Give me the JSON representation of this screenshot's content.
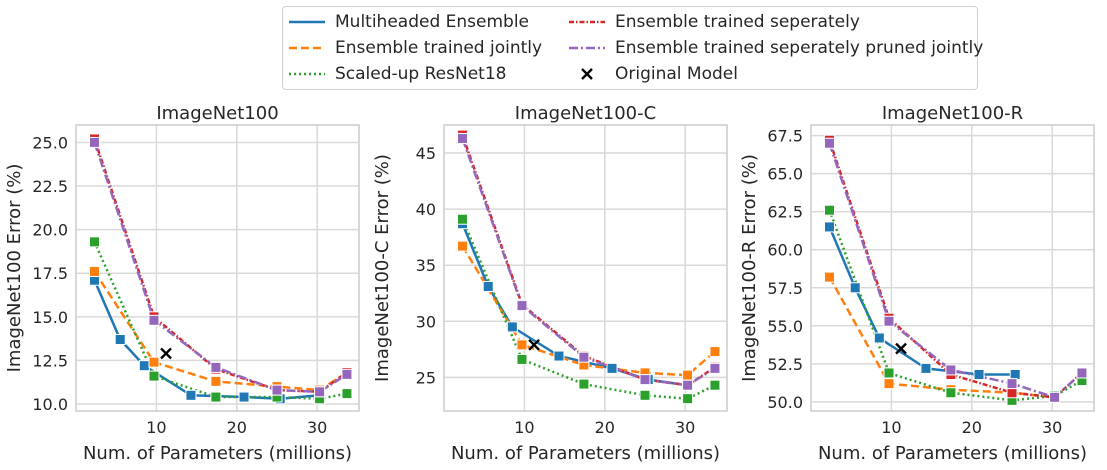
{
  "chart_data": [
    {
      "type": "line",
      "title": "ImageNet100",
      "xlabel": "Num. of Parameters (millions)",
      "ylabel": "ImageNet100 Error (%)",
      "xlim": [
        0,
        35.2
      ],
      "ylim": [
        9.6,
        26.0
      ],
      "xticks": [
        10,
        20,
        30
      ],
      "yticks": [
        10.0,
        12.5,
        15.0,
        17.5,
        20.0,
        22.5,
        25.0
      ],
      "ytick_labels": [
        "10.0",
        "12.5",
        "15.0",
        "17.5",
        "20.0",
        "22.5",
        "25.0"
      ],
      "grid": true,
      "series": [
        {
          "name": "Multiheaded Ensemble",
          "points": [
            [
              2.3,
              17.1
            ],
            [
              5.5,
              13.7
            ],
            [
              8.5,
              12.2
            ],
            [
              14.3,
              10.5
            ],
            [
              20.9,
              10.4
            ],
            [
              25.4,
              10.3
            ],
            [
              30.3,
              10.5
            ]
          ]
        },
        {
          "name": "Ensemble trained jointly",
          "points": [
            [
              2.3,
              17.6
            ],
            [
              9.7,
              12.4
            ],
            [
              17.4,
              11.3
            ],
            [
              25.0,
              11.0
            ],
            [
              30.3,
              10.8
            ],
            [
              33.7,
              11.8
            ]
          ]
        },
        {
          "name": "Scaled-up ResNet18",
          "points": [
            [
              2.3,
              19.3
            ],
            [
              9.7,
              11.6
            ],
            [
              17.4,
              10.4
            ],
            [
              25.0,
              10.4
            ],
            [
              30.3,
              10.3
            ],
            [
              33.7,
              10.6
            ]
          ]
        },
        {
          "name": "Ensemble trained seperately",
          "points": [
            [
              2.3,
              25.2
            ],
            [
              9.7,
              15.0
            ],
            [
              17.4,
              12.0
            ],
            [
              25.0,
              10.8
            ],
            [
              30.3,
              10.7
            ],
            [
              33.7,
              11.8
            ]
          ]
        },
        {
          "name": "Ensemble trained seperately pruned jointly",
          "points": [
            [
              2.3,
              25.0
            ],
            [
              9.7,
              14.8
            ],
            [
              17.4,
              12.1
            ],
            [
              25.0,
              10.8
            ],
            [
              30.3,
              10.7
            ],
            [
              33.7,
              11.7
            ]
          ]
        }
      ],
      "original_model": [
        11.2,
        12.9
      ]
    },
    {
      "type": "line",
      "title": "ImageNet100-C",
      "xlabel": "Num. of Parameters (millions)",
      "ylabel": "ImageNet100-C Error (%)",
      "xlim": [
        0,
        35.2
      ],
      "ylim": [
        22.0,
        47.5
      ],
      "xticks": [
        10,
        20,
        30
      ],
      "yticks": [
        25,
        30,
        35,
        40,
        45
      ],
      "ytick_labels": [
        "25",
        "30",
        "35",
        "40",
        "45"
      ],
      "grid": true,
      "series": [
        {
          "name": "Multiheaded Ensemble",
          "points": [
            [
              2.3,
              38.7
            ],
            [
              5.5,
              33.1
            ],
            [
              8.5,
              29.5
            ],
            [
              14.3,
              26.9
            ],
            [
              20.9,
              25.8
            ],
            [
              25.4,
              24.8
            ],
            [
              30.3,
              24.3
            ]
          ]
        },
        {
          "name": "Ensemble trained jointly",
          "points": [
            [
              2.3,
              36.7
            ],
            [
              9.7,
              27.9
            ],
            [
              17.4,
              26.1
            ],
            [
              25.0,
              25.4
            ],
            [
              30.3,
              25.2
            ],
            [
              33.7,
              27.3
            ]
          ]
        },
        {
          "name": "Scaled-up ResNet18",
          "points": [
            [
              2.3,
              39.1
            ],
            [
              9.7,
              26.6
            ],
            [
              17.4,
              24.4
            ],
            [
              25.0,
              23.4
            ],
            [
              30.3,
              23.1
            ],
            [
              33.7,
              24.3
            ]
          ]
        },
        {
          "name": "Ensemble trained seperately",
          "points": [
            [
              2.3,
              46.6
            ],
            [
              9.7,
              31.5
            ],
            [
              17.4,
              26.9
            ],
            [
              25.0,
              24.8
            ],
            [
              30.3,
              24.3
            ],
            [
              33.7,
              25.9
            ]
          ]
        },
        {
          "name": "Ensemble trained seperately pruned jointly",
          "points": [
            [
              2.3,
              46.3
            ],
            [
              9.7,
              31.4
            ],
            [
              17.4,
              26.8
            ],
            [
              25.0,
              24.8
            ],
            [
              30.3,
              24.3
            ],
            [
              33.7,
              25.8
            ]
          ]
        }
      ],
      "original_model": [
        11.2,
        27.9
      ]
    },
    {
      "type": "line",
      "title": "ImageNet100-R",
      "xlabel": "Num. of Parameters (millions)",
      "ylabel": "ImageNet100-R Error (%)",
      "xlim": [
        0,
        35.2
      ],
      "ylim": [
        49.4,
        68.2
      ],
      "xticks": [
        10,
        20,
        30
      ],
      "yticks": [
        50.0,
        52.5,
        55.0,
        57.5,
        60.0,
        62.5,
        65.0,
        67.5
      ],
      "ytick_labels": [
        "50.0",
        "52.5",
        "55.0",
        "57.5",
        "60.0",
        "62.5",
        "65.0",
        "67.5"
      ],
      "grid": true,
      "series": [
        {
          "name": "Multiheaded Ensemble",
          "points": [
            [
              2.3,
              61.5
            ],
            [
              5.5,
              57.5
            ],
            [
              8.5,
              54.2
            ],
            [
              14.3,
              52.2
            ],
            [
              20.9,
              51.8
            ],
            [
              25.4,
              51.8
            ]
          ]
        },
        {
          "name": "Ensemble trained jointly",
          "points": [
            [
              2.3,
              58.2
            ],
            [
              9.7,
              51.2
            ],
            [
              17.4,
              50.8
            ],
            [
              25.0,
              50.6
            ],
            [
              30.3,
              50.3
            ]
          ]
        },
        {
          "name": "Scaled-up ResNet18",
          "points": [
            [
              2.3,
              62.6
            ],
            [
              9.7,
              51.9
            ],
            [
              17.4,
              50.6
            ],
            [
              25.0,
              50.1
            ],
            [
              30.3,
              50.4
            ],
            [
              33.7,
              51.4
            ]
          ]
        },
        {
          "name": "Ensemble trained seperately",
          "points": [
            [
              2.3,
              67.2
            ],
            [
              9.7,
              55.5
            ],
            [
              17.4,
              51.8
            ],
            [
              25.0,
              50.6
            ],
            [
              30.3,
              50.3
            ],
            [
              33.7,
              51.9
            ]
          ]
        },
        {
          "name": "Ensemble trained seperately pruned jointly",
          "points": [
            [
              2.3,
              67.0
            ],
            [
              9.7,
              55.3
            ],
            [
              17.4,
              52.1
            ],
            [
              25.0,
              51.2
            ],
            [
              30.3,
              50.3
            ],
            [
              33.7,
              51.9
            ]
          ]
        }
      ],
      "original_model": [
        11.2,
        53.5
      ]
    }
  ],
  "legend": {
    "placement": "top-center",
    "items": [
      {
        "label": "Multiheaded Ensemble",
        "color": "#1f77b4",
        "style": "solid"
      },
      {
        "label": "Ensemble trained jointly",
        "color": "#ff7f0e",
        "style": "dashed"
      },
      {
        "label": "Scaled-up ResNet18",
        "color": "#2ca02c",
        "style": "dotted"
      },
      {
        "label": "Ensemble trained seperately",
        "color": "#d62728",
        "style": "dashdot-dense"
      },
      {
        "label": "Ensemble trained seperately pruned jointly",
        "color": "#9467bd",
        "style": "dashdot"
      },
      {
        "label": "Original Model",
        "color": "#000000",
        "style": "x-marker"
      }
    ]
  }
}
